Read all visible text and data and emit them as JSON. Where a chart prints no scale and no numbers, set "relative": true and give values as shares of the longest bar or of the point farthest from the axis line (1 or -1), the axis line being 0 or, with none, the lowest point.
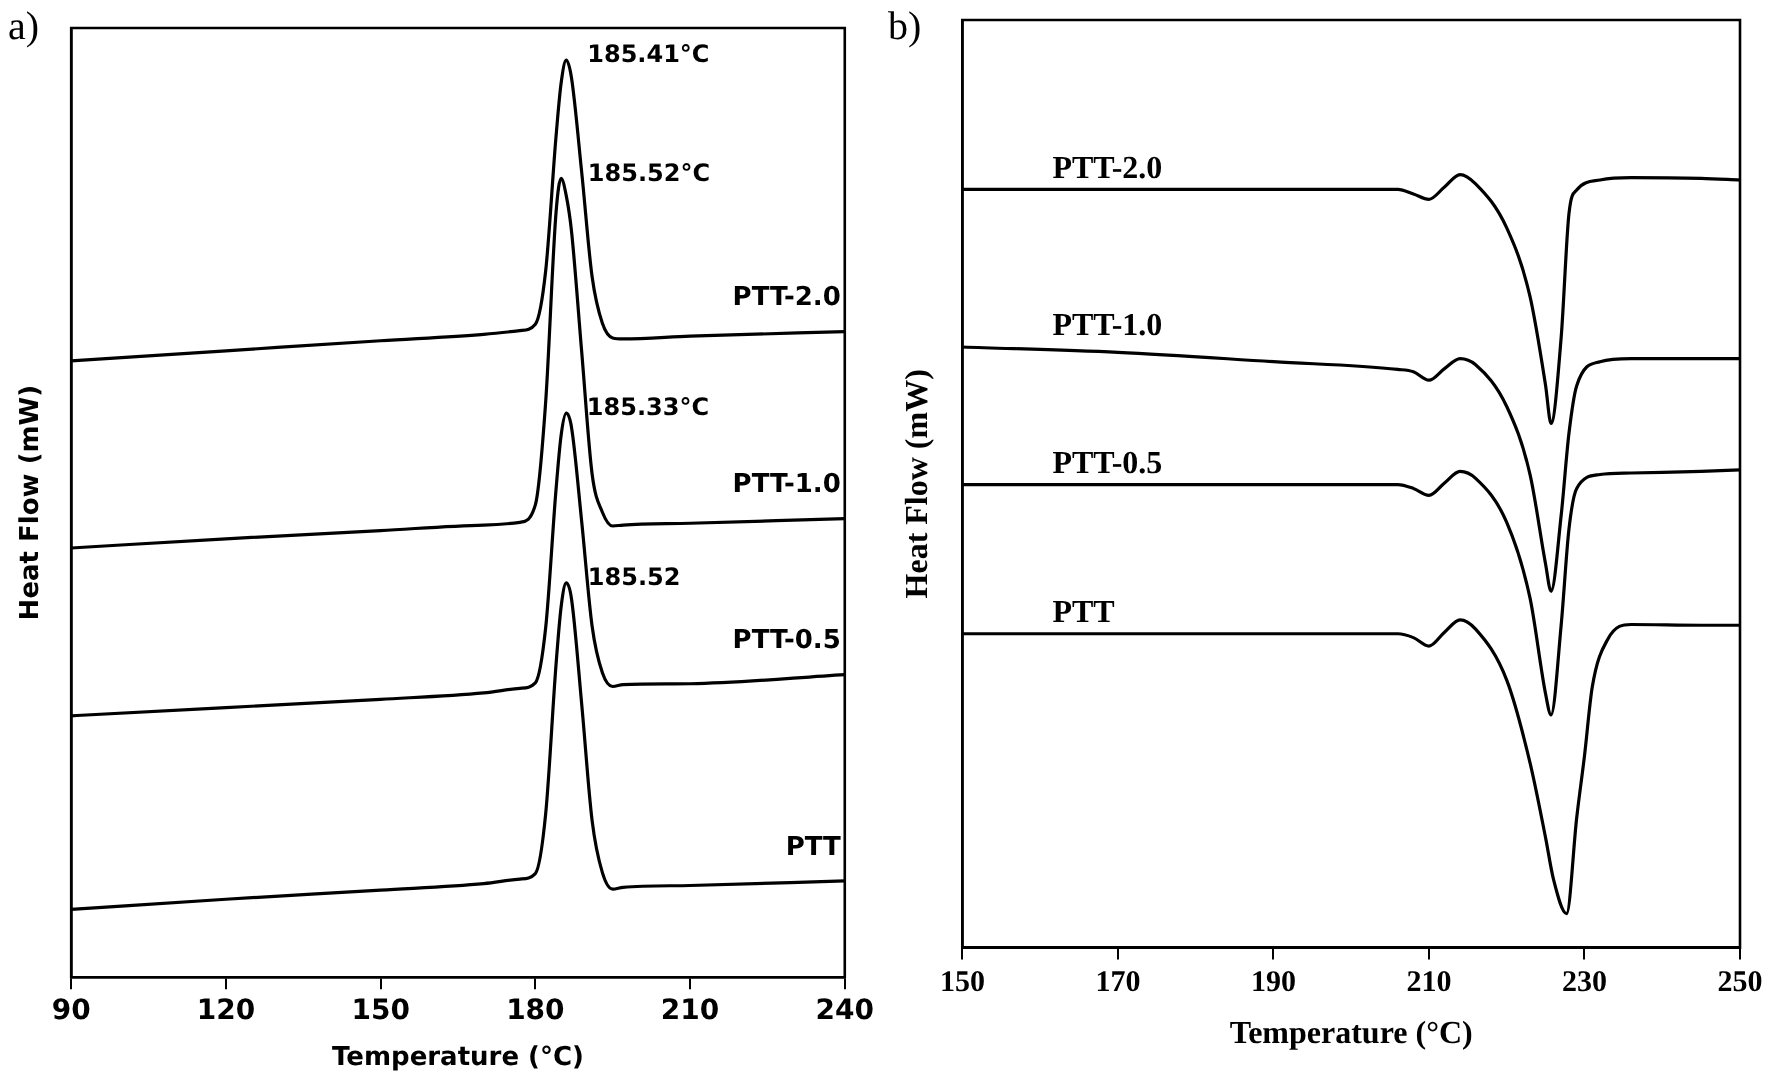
{
  "chart_data": [
    {
      "type": "line",
      "title": "a)",
      "xlabel": "Temperature (°C)",
      "ylabel": "Heat Flow (mW)",
      "relative": true,
      "marker": "none",
      "line_style": "solid",
      "xlim": [
        90,
        240
      ],
      "xticks": [
        90,
        120,
        150,
        180,
        210,
        240
      ],
      "x": [
        90,
        120,
        150,
        170,
        177,
        180,
        182,
        184,
        185,
        186,
        187,
        189,
        191,
        193,
        195,
        197,
        210,
        240
      ],
      "series": [
        {
          "name": "PTT-2.0",
          "color": "#000000",
          "values": [
            0.672,
            0.683,
            0.694,
            0.701,
            0.705,
            0.712,
            0.77,
            0.916,
            0.975,
            1,
            0.981,
            0.877,
            0.764,
            0.713,
            0.697,
            0.696,
            0.699,
            0.704
          ]
        },
        {
          "name": "PTT-1.0",
          "color": "#000000",
          "values": [
            0.468,
            0.478,
            0.487,
            0.493,
            0.496,
            0.515,
            0.627,
            0.833,
            0.871,
            0.852,
            0.814,
            0.681,
            0.549,
            0.507,
            0.492,
            0.493,
            0.495,
            0.5
          ]
        },
        {
          "name": "PTT-0.5",
          "color": "#000000",
          "values": [
            0.285,
            0.294,
            0.303,
            0.31,
            0.315,
            0.321,
            0.381,
            0.531,
            0.591,
            0.615,
            0.6,
            0.496,
            0.383,
            0.332,
            0.317,
            0.319,
            0.32,
            0.33
          ]
        },
        {
          "name": "PTT",
          "color": "#000000",
          "values": [
            0.074,
            0.085,
            0.095,
            0.102,
            0.107,
            0.113,
            0.178,
            0.34,
            0.404,
            0.43,
            0.413,
            0.297,
            0.171,
            0.114,
            0.096,
            0.098,
            0.1,
            0.105
          ]
        }
      ],
      "annotations": [
        {
          "text": "185.41°C",
          "x": 185.41,
          "y": 1
        },
        {
          "text": "185.52°C",
          "x": 185.52,
          "y": 0.871
        },
        {
          "text": "185.33°C",
          "x": 185.33,
          "y": 0.615
        },
        {
          "text": "185.52",
          "x": 185.52,
          "y": 0.43
        }
      ]
    },
    {
      "type": "line",
      "title": "b)",
      "xlabel": "Temperature (°C)",
      "ylabel": "Heat Flow (mW)",
      "relative": true,
      "marker": "none",
      "line_style": "solid",
      "xlim": [
        150,
        250
      ],
      "xticks": [
        150,
        170,
        190,
        210,
        230,
        250
      ],
      "x": [
        150,
        170,
        190,
        206,
        208,
        210,
        212,
        214,
        216,
        220,
        223,
        225,
        225.7,
        227,
        228,
        229,
        232,
        236,
        245,
        250
      ],
      "series": [
        {
          "name": "PTT-2.0",
          "color": "#000000",
          "values": [
            0.981,
            0.981,
            0.981,
            0.981,
            0.975,
            0.968,
            0.984,
            1,
            0.988,
            0.931,
            0.842,
            0.727,
            0.678,
            0.789,
            0.949,
            0.98,
            0.993,
            0.996,
            0.995,
            0.993
          ]
        },
        {
          "name": "PTT-1.0",
          "color": "#000000",
          "values": [
            0.777,
            0.77,
            0.758,
            0.748,
            0.745,
            0.734,
            0.749,
            0.762,
            0.754,
            0.7,
            0.612,
            0.496,
            0.461,
            0.559,
            0.665,
            0.727,
            0.758,
            0.762,
            0.762,
            0.762
          ]
        },
        {
          "name": "PTT-0.5",
          "color": "#000000",
          "values": [
            0.599,
            0.599,
            0.599,
            0.599,
            0.594,
            0.585,
            0.601,
            0.616,
            0.607,
            0.55,
            0.452,
            0.328,
            0.301,
            0.417,
            0.541,
            0.594,
            0.612,
            0.614,
            0.616,
            0.618
          ]
        },
        {
          "name": "PTT",
          "color": "#000000",
          "x": [
            150,
            170,
            190,
            206,
            208,
            210,
            212,
            214,
            216,
            220,
            223,
            225,
            226,
            227.7,
            229,
            230,
            231,
            233,
            236,
            245,
            250
          ],
          "values": [
            0.406,
            0.406,
            0.406,
            0.406,
            0.401,
            0.39,
            0.408,
            0.424,
            0.412,
            0.346,
            0.239,
            0.142,
            0.089,
            0.044,
            0.168,
            0.248,
            0.337,
            0.399,
            0.418,
            0.417,
            0.417
          ]
        }
      ]
    }
  ]
}
